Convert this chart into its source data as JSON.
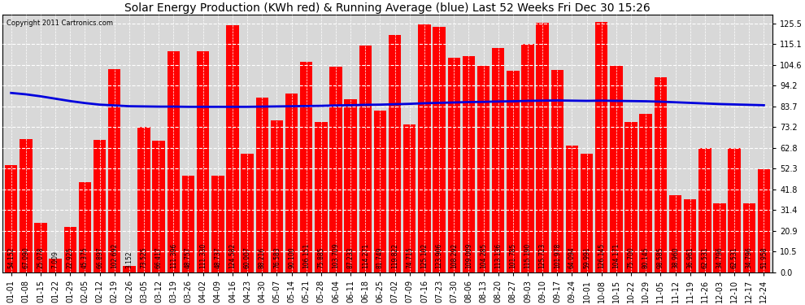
{
  "title": "Solar Energy Production (KWh red) & Running Average (blue) Last 52 Weeks Fri Dec 30 15:26",
  "copyright": "Copyright 2011 Cartronics.com",
  "bar_color": "#ff0000",
  "avg_line_color": "#0000dd",
  "background_color": "#ffffff",
  "plot_bg_color": "#d8d8d8",
  "grid_color": "#ffffff",
  "categories": [
    "01-01",
    "01-08",
    "01-15",
    "01-22",
    "01-29",
    "02-05",
    "02-12",
    "02-19",
    "02-26",
    "03-05",
    "03-12",
    "03-19",
    "03-26",
    "04-02",
    "04-09",
    "04-16",
    "04-23",
    "04-30",
    "05-07",
    "05-14",
    "05-21",
    "05-28",
    "06-04",
    "06-11",
    "06-18",
    "06-25",
    "07-02",
    "07-09",
    "07-16",
    "07-23",
    "07-30",
    "08-06",
    "08-13",
    "08-20",
    "08-27",
    "09-03",
    "09-10",
    "09-17",
    "09-24",
    "10-01",
    "10-08",
    "10-15",
    "10-22",
    "10-29",
    "11-05",
    "11-12",
    "11-19",
    "11-26",
    "12-03",
    "12-10",
    "12-17",
    "12-24"
  ],
  "values": [
    54.152,
    67.09,
    25.078,
    7.009,
    22.925,
    45.375,
    66.897,
    102.692,
    3.152,
    73.525,
    66.417,
    111.396,
    48.757,
    111.33,
    48.737,
    124.582,
    60.007,
    88.216,
    76.583,
    90.1,
    106.151,
    75.885,
    103.709,
    87.233,
    114.271,
    81.749,
    119.822,
    74.715,
    125.102,
    123.906,
    108.292,
    109.009,
    104.285,
    113.136,
    101.785,
    115.19,
    125.723,
    101.978,
    64.094,
    59.991,
    126.145,
    104.171,
    75.7,
    80.145,
    98.585,
    38.96,
    36.961,
    62.531,
    34.796,
    62.531,
    34.796,
    51.958
  ],
  "running_avg": [
    90.5,
    89.8,
    88.8,
    87.6,
    86.4,
    85.4,
    84.6,
    84.2,
    83.8,
    83.7,
    83.6,
    83.6,
    83.5,
    83.5,
    83.5,
    83.5,
    83.5,
    83.6,
    83.7,
    83.8,
    83.9,
    84.0,
    84.2,
    84.3,
    84.5,
    84.6,
    84.8,
    85.0,
    85.3,
    85.5,
    85.7,
    85.9,
    86.0,
    86.2,
    86.3,
    86.5,
    86.6,
    86.7,
    86.6,
    86.5,
    86.6,
    86.5,
    86.4,
    86.3,
    86.1,
    85.8,
    85.5,
    85.2,
    84.9,
    84.7,
    84.5,
    84.3
  ],
  "yticks": [
    0.0,
    10.5,
    20.9,
    31.4,
    41.8,
    52.3,
    62.8,
    73.2,
    83.7,
    94.2,
    104.6,
    115.1,
    125.5
  ],
  "ymax": 130,
  "title_fontsize": 10,
  "tick_fontsize": 7,
  "label_fontsize": 5.5
}
